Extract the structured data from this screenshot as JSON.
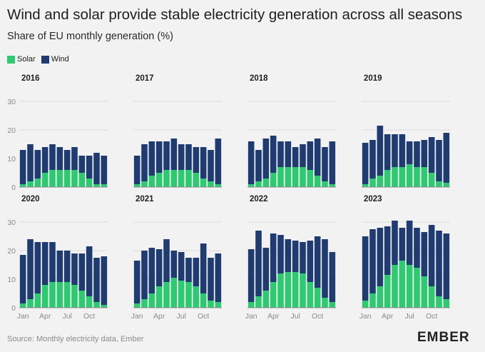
{
  "title": "Wind and solar provide stable electricity generation across all seasons",
  "subtitle": "Share of EU monthly generation (%)",
  "legend": [
    {
      "label": "Solar",
      "color": "#2ec971"
    },
    {
      "label": "Wind",
      "color": "#1f3b70"
    }
  ],
  "source": "Source: Monthly electricity data, Ember",
  "logo": "EMBER",
  "chart_data": [
    {
      "type": "bar",
      "title": "2016",
      "categories": [
        "Jan",
        "Feb",
        "Mar",
        "Apr",
        "May",
        "Jun",
        "Jul",
        "Aug",
        "Sep",
        "Oct",
        "Nov",
        "Dec"
      ],
      "series": [
        {
          "name": "Solar",
          "values": [
            1,
            2,
            3,
            5,
            6,
            6,
            6,
            6,
            5,
            3,
            1,
            1
          ]
        },
        {
          "name": "Wind",
          "values": [
            12,
            13,
            10,
            9,
            9,
            8,
            7,
            8,
            6,
            8,
            11,
            10
          ]
        }
      ],
      "ylim": [
        0,
        30
      ],
      "stacked": true
    },
    {
      "type": "bar",
      "title": "2017",
      "categories": [
        "Jan",
        "Feb",
        "Mar",
        "Apr",
        "May",
        "Jun",
        "Jul",
        "Aug",
        "Sep",
        "Oct",
        "Nov",
        "Dec"
      ],
      "series": [
        {
          "name": "Solar",
          "values": [
            1,
            2,
            4,
            5,
            6,
            6,
            6,
            6,
            5,
            3,
            2,
            1
          ]
        },
        {
          "name": "Wind",
          "values": [
            10,
            13,
            12,
            11,
            10,
            11,
            9,
            9,
            9,
            11,
            11,
            16
          ]
        }
      ],
      "ylim": [
        0,
        30
      ],
      "stacked": true
    },
    {
      "type": "bar",
      "title": "2018",
      "categories": [
        "Jan",
        "Feb",
        "Mar",
        "Apr",
        "May",
        "Jun",
        "Jul",
        "Aug",
        "Sep",
        "Oct",
        "Nov",
        "Dec"
      ],
      "series": [
        {
          "name": "Solar",
          "values": [
            1,
            2,
            3,
            5,
            7,
            7,
            7,
            7,
            6,
            4,
            2,
            1
          ]
        },
        {
          "name": "Wind",
          "values": [
            15,
            11,
            14,
            13,
            9,
            9,
            7,
            8,
            10,
            13,
            12,
            15
          ]
        }
      ],
      "ylim": [
        0,
        30
      ],
      "stacked": true
    },
    {
      "type": "bar",
      "title": "2019",
      "categories": [
        "Jan",
        "Feb",
        "Mar",
        "Apr",
        "May",
        "Jun",
        "Jul",
        "Aug",
        "Sep",
        "Oct",
        "Nov",
        "Dec"
      ],
      "series": [
        {
          "name": "Solar",
          "values": [
            1,
            3,
            4,
            6,
            7,
            7,
            8,
            7,
            7,
            5,
            2,
            1.5
          ]
        },
        {
          "name": "Wind",
          "values": [
            14.5,
            13.5,
            17.5,
            12.5,
            11.5,
            11.5,
            8,
            9,
            9.5,
            12.5,
            14.5,
            17.5
          ]
        }
      ],
      "ylim": [
        0,
        30
      ],
      "stacked": true
    },
    {
      "type": "bar",
      "title": "2020",
      "categories": [
        "Jan",
        "Feb",
        "Mar",
        "Apr",
        "May",
        "Jun",
        "Jul",
        "Aug",
        "Sep",
        "Oct",
        "Nov",
        "Dec"
      ],
      "series": [
        {
          "name": "Solar",
          "values": [
            1.5,
            3,
            5,
            8,
            9,
            9,
            9,
            8,
            6,
            4,
            2,
            1
          ]
        },
        {
          "name": "Wind",
          "values": [
            17,
            21,
            18,
            15,
            14,
            11,
            11,
            11,
            13,
            17.5,
            15.5,
            17
          ]
        }
      ],
      "ylim": [
        0,
        30
      ],
      "stacked": true
    },
    {
      "type": "bar",
      "title": "2021",
      "categories": [
        "Jan",
        "Feb",
        "Mar",
        "Apr",
        "May",
        "Jun",
        "Jul",
        "Aug",
        "Sep",
        "Oct",
        "Nov",
        "Dec"
      ],
      "series": [
        {
          "name": "Solar",
          "values": [
            1.5,
            3,
            5,
            7.5,
            9,
            10.5,
            9.5,
            9,
            7.5,
            5,
            2.5,
            2
          ]
        },
        {
          "name": "Wind",
          "values": [
            15,
            17,
            16,
            13,
            15,
            9.5,
            10,
            8.5,
            10,
            17.5,
            15,
            17
          ]
        }
      ],
      "ylim": [
        0,
        30
      ],
      "stacked": true
    },
    {
      "type": "bar",
      "title": "2022",
      "categories": [
        "Jan",
        "Feb",
        "Mar",
        "Apr",
        "May",
        "Jun",
        "Jul",
        "Aug",
        "Sep",
        "Oct",
        "Nov",
        "Dec"
      ],
      "series": [
        {
          "name": "Solar",
          "values": [
            2,
            4,
            6,
            9,
            12,
            12.5,
            12.5,
            12,
            9,
            7,
            3.5,
            2
          ]
        },
        {
          "name": "Wind",
          "values": [
            18.5,
            23,
            15,
            17,
            13.5,
            11.5,
            11,
            11,
            14.5,
            18,
            20.5,
            17.5
          ]
        }
      ],
      "ylim": [
        0,
        30
      ],
      "stacked": true
    },
    {
      "type": "bar",
      "title": "2023",
      "categories": [
        "Jan",
        "Feb",
        "Mar",
        "Apr",
        "May",
        "Jun",
        "Jul",
        "Aug",
        "Sep",
        "Oct",
        "Nov",
        "Dec"
      ],
      "series": [
        {
          "name": "Solar",
          "values": [
            2.5,
            5,
            7.5,
            11.5,
            15,
            16.5,
            15,
            14,
            11,
            7.5,
            4,
            3
          ]
        },
        {
          "name": "Wind",
          "values": [
            22.5,
            22.5,
            20.5,
            17,
            15.5,
            11.5,
            15.5,
            14,
            15.5,
            21.5,
            23,
            23
          ]
        }
      ],
      "ylim": [
        0,
        30
      ],
      "stacked": true
    }
  ],
  "yticks": [
    "0",
    "10",
    "20",
    "30"
  ],
  "xticks": [
    {
      "label": "Jan",
      "month": 0
    },
    {
      "label": "Apr",
      "month": 3
    },
    {
      "label": "Jul",
      "month": 6
    },
    {
      "label": "Oct",
      "month": 9
    }
  ]
}
